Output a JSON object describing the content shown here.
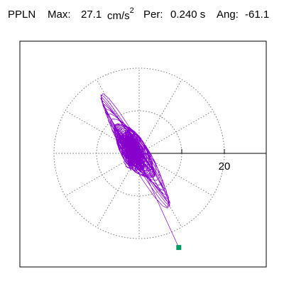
{
  "header": {
    "station": "PPLN",
    "max_label": "Max:",
    "max_value": "27.1",
    "max_unit": "cm/s",
    "max_unit_exp": "2",
    "per_label": "Per:",
    "per_value": "0.240 s",
    "ang_label": "Ang:",
    "ang_value": "-61.1"
  },
  "chart_data": {
    "type": "scatter",
    "title": "PPLN",
    "max_acceleration_cm_s2": 27.1,
    "period_s": 0.24,
    "angle_deg": -61.1,
    "rings": [
      10,
      20
    ],
    "spoke_step_deg": 30,
    "ticks": [
      {
        "value": 20,
        "label": "20"
      }
    ],
    "range": [
      -27.1,
      27.1
    ],
    "end_marker": {
      "x": 9.3,
      "y": -22.1
    },
    "colors": {
      "trace": "#8800cc",
      "grid": "#777777",
      "marker": "#009966",
      "axis": "#000000"
    }
  }
}
